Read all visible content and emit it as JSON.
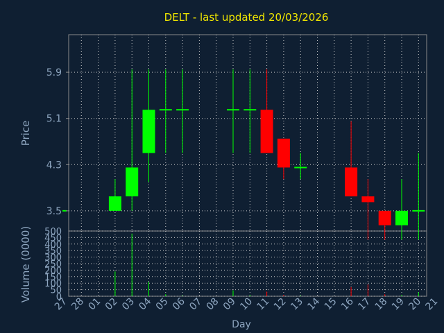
{
  "chart_data": {
    "type": "candlestick",
    "title": "DELT - last updated 20/03/2026",
    "xlabel": "Day",
    "price_ylabel": "Price",
    "volume_ylabel": "Volume (0000)",
    "x_ticks": [
      "27",
      "28",
      "01",
      "02",
      "03",
      "04",
      "05",
      "06",
      "07",
      "08",
      "09",
      "10",
      "11",
      "12",
      "13",
      "14",
      "15",
      "16",
      "17",
      "18",
      "19",
      "20",
      "21"
    ],
    "price_ticks": [
      "3.5",
      "4.3",
      "5.1",
      "5.9"
    ],
    "price_ylim": [
      3.15,
      6.55
    ],
    "volume_ticks": [
      "0",
      "50",
      "100",
      "150",
      "200",
      "250",
      "300",
      "350",
      "400",
      "450",
      "500"
    ],
    "volume_ylim": [
      0,
      500
    ],
    "grid": true,
    "colors": {
      "background": "#0f1f32",
      "up": "#00ff00",
      "down": "#ff0000",
      "grid": "#c8c8c8",
      "text": "#8ea6c0",
      "title": "#f0e600"
    },
    "candles": [
      {
        "day": "27",
        "open": 3.5,
        "high": 3.5,
        "low": 3.5,
        "close": 3.5,
        "volume": 0
      },
      {
        "day": "02",
        "open": 3.5,
        "high": 4.05,
        "low": 3.5,
        "close": 3.75,
        "volume": 190
      },
      {
        "day": "03",
        "open": 3.75,
        "high": 5.95,
        "low": 3.5,
        "close": 4.25,
        "volume": 480
      },
      {
        "day": "04",
        "open": 4.5,
        "high": 5.95,
        "low": 4.0,
        "close": 5.25,
        "volume": 110
      },
      {
        "day": "05",
        "open": 5.25,
        "high": 5.95,
        "low": 4.5,
        "close": 5.25,
        "volume": 15
      },
      {
        "day": "06",
        "open": 5.25,
        "high": 5.95,
        "low": 4.5,
        "close": 5.25,
        "volume": 5
      },
      {
        "day": "09",
        "open": 5.25,
        "high": 5.95,
        "low": 4.5,
        "close": 5.25,
        "volume": 45
      },
      {
        "day": "10",
        "open": 5.25,
        "high": 5.95,
        "low": 4.5,
        "close": 5.25,
        "volume": 10
      },
      {
        "day": "11",
        "open": 5.25,
        "high": 5.95,
        "low": 4.5,
        "close": 4.5,
        "volume": 35
      },
      {
        "day": "12",
        "open": 4.75,
        "high": 4.75,
        "low": 4.05,
        "close": 4.25,
        "volume": 10
      },
      {
        "day": "13",
        "open": 4.25,
        "high": 4.5,
        "low": 4.05,
        "close": 4.25,
        "volume": 5
      },
      {
        "day": "16",
        "open": 4.25,
        "high": 5.05,
        "low": 3.75,
        "close": 3.75,
        "volume": 70
      },
      {
        "day": "17",
        "open": 3.75,
        "high": 4.05,
        "low": 3.0,
        "close": 3.65,
        "volume": 90
      },
      {
        "day": "18",
        "open": 3.5,
        "high": 3.5,
        "low": 3.0,
        "close": 3.25,
        "volume": 15
      },
      {
        "day": "19",
        "open": 3.25,
        "high": 4.05,
        "low": 3.0,
        "close": 3.5,
        "volume": 10
      },
      {
        "day": "20",
        "open": 3.5,
        "high": 4.5,
        "low": 3.0,
        "close": 3.5,
        "volume": 30
      }
    ]
  }
}
